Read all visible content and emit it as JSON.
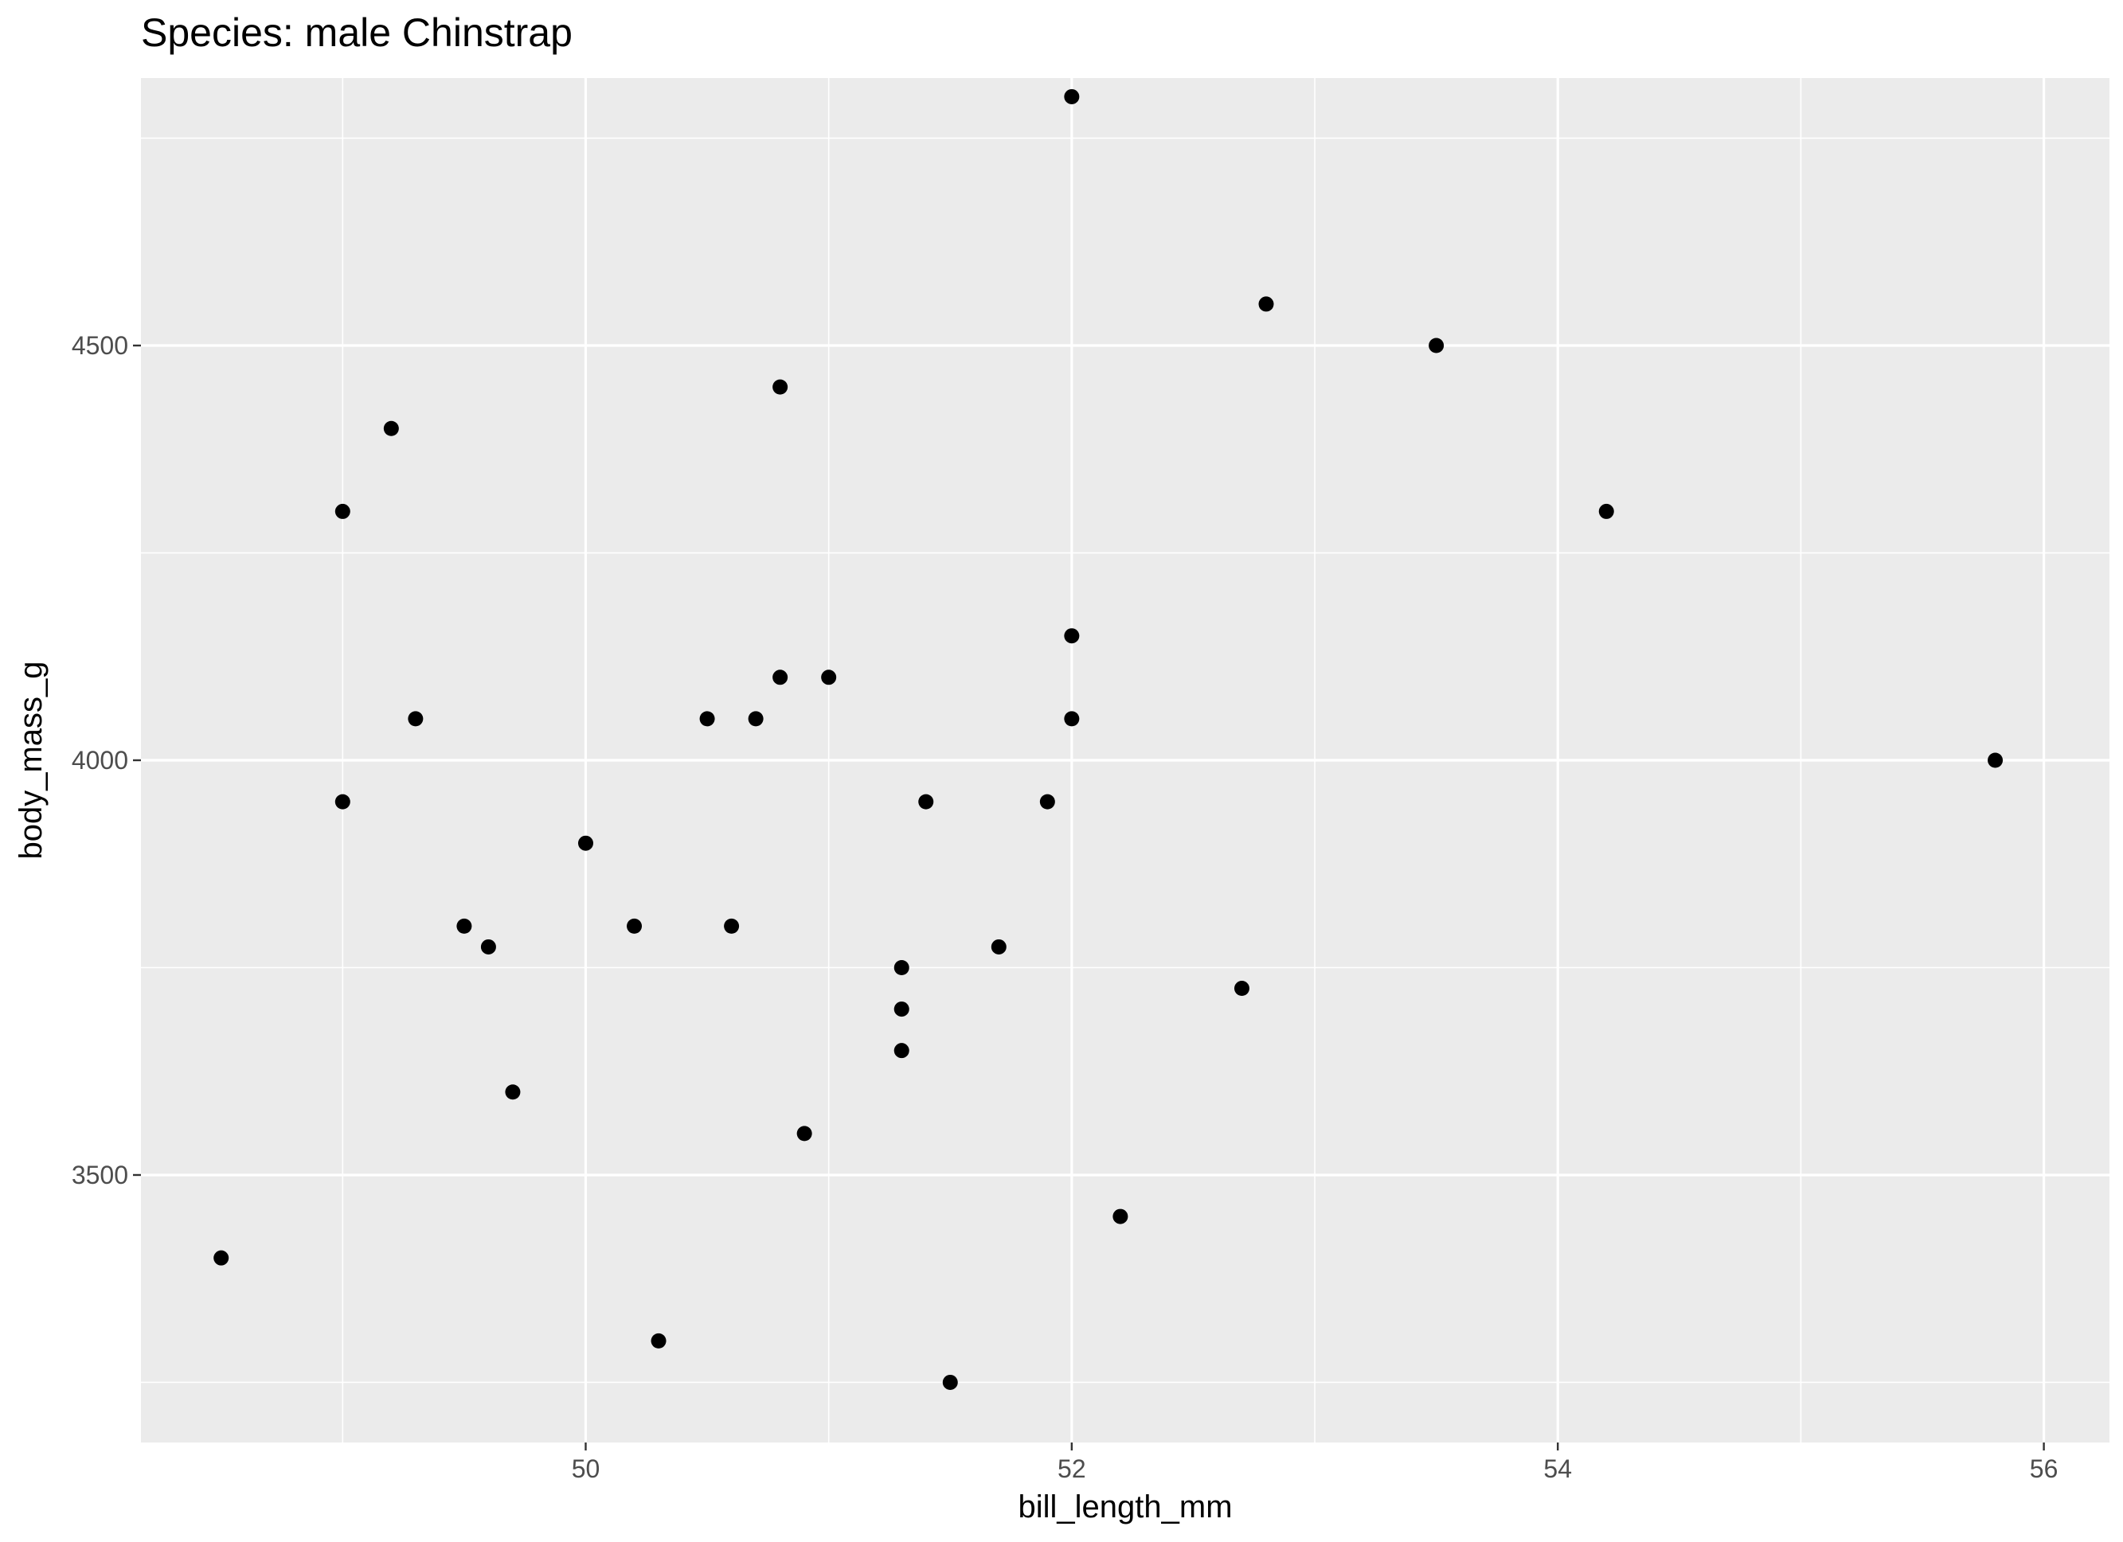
{
  "chart_data": {
    "type": "scatter",
    "title": "Species: male Chinstrap",
    "xlabel": "bill_length_mm",
    "ylabel": "body_mass_g",
    "xlim": [
      48.17,
      56.27
    ],
    "ylim": [
      3177.5,
      4822.5
    ],
    "x_ticks": [
      50,
      52,
      54,
      56
    ],
    "x_minor_ticks": [
      49,
      51,
      53,
      55
    ],
    "y_ticks": [
      3500,
      4000,
      4500
    ],
    "y_minor_ticks": [
      3250,
      3750,
      4250,
      4750
    ],
    "grid": true,
    "background": "#ebebeb",
    "point_color": "#000000",
    "points": [
      {
        "x": 48.5,
        "y": 3400
      },
      {
        "x": 49.0,
        "y": 4300
      },
      {
        "x": 49.0,
        "y": 3950
      },
      {
        "x": 49.2,
        "y": 4400
      },
      {
        "x": 49.3,
        "y": 4050
      },
      {
        "x": 49.5,
        "y": 3800
      },
      {
        "x": 49.6,
        "y": 3775
      },
      {
        "x": 49.7,
        "y": 3600
      },
      {
        "x": 50.0,
        "y": 3900
      },
      {
        "x": 50.2,
        "y": 3800
      },
      {
        "x": 50.3,
        "y": 3300
      },
      {
        "x": 50.5,
        "y": 4050
      },
      {
        "x": 50.6,
        "y": 3800
      },
      {
        "x": 50.7,
        "y": 4050
      },
      {
        "x": 50.8,
        "y": 4450
      },
      {
        "x": 50.8,
        "y": 4100
      },
      {
        "x": 50.9,
        "y": 3550
      },
      {
        "x": 51.0,
        "y": 4100
      },
      {
        "x": 51.3,
        "y": 3750
      },
      {
        "x": 51.3,
        "y": 3700
      },
      {
        "x": 51.3,
        "y": 3650
      },
      {
        "x": 51.4,
        "y": 3950
      },
      {
        "x": 51.5,
        "y": 3250
      },
      {
        "x": 51.7,
        "y": 3775
      },
      {
        "x": 51.9,
        "y": 3950
      },
      {
        "x": 52.0,
        "y": 4800
      },
      {
        "x": 52.0,
        "y": 4150
      },
      {
        "x": 52.0,
        "y": 4050
      },
      {
        "x": 52.2,
        "y": 3450
      },
      {
        "x": 52.7,
        "y": 3725
      },
      {
        "x": 52.8,
        "y": 4550
      },
      {
        "x": 53.5,
        "y": 4500
      },
      {
        "x": 54.2,
        "y": 4300
      },
      {
        "x": 55.8,
        "y": 4000
      }
    ]
  }
}
